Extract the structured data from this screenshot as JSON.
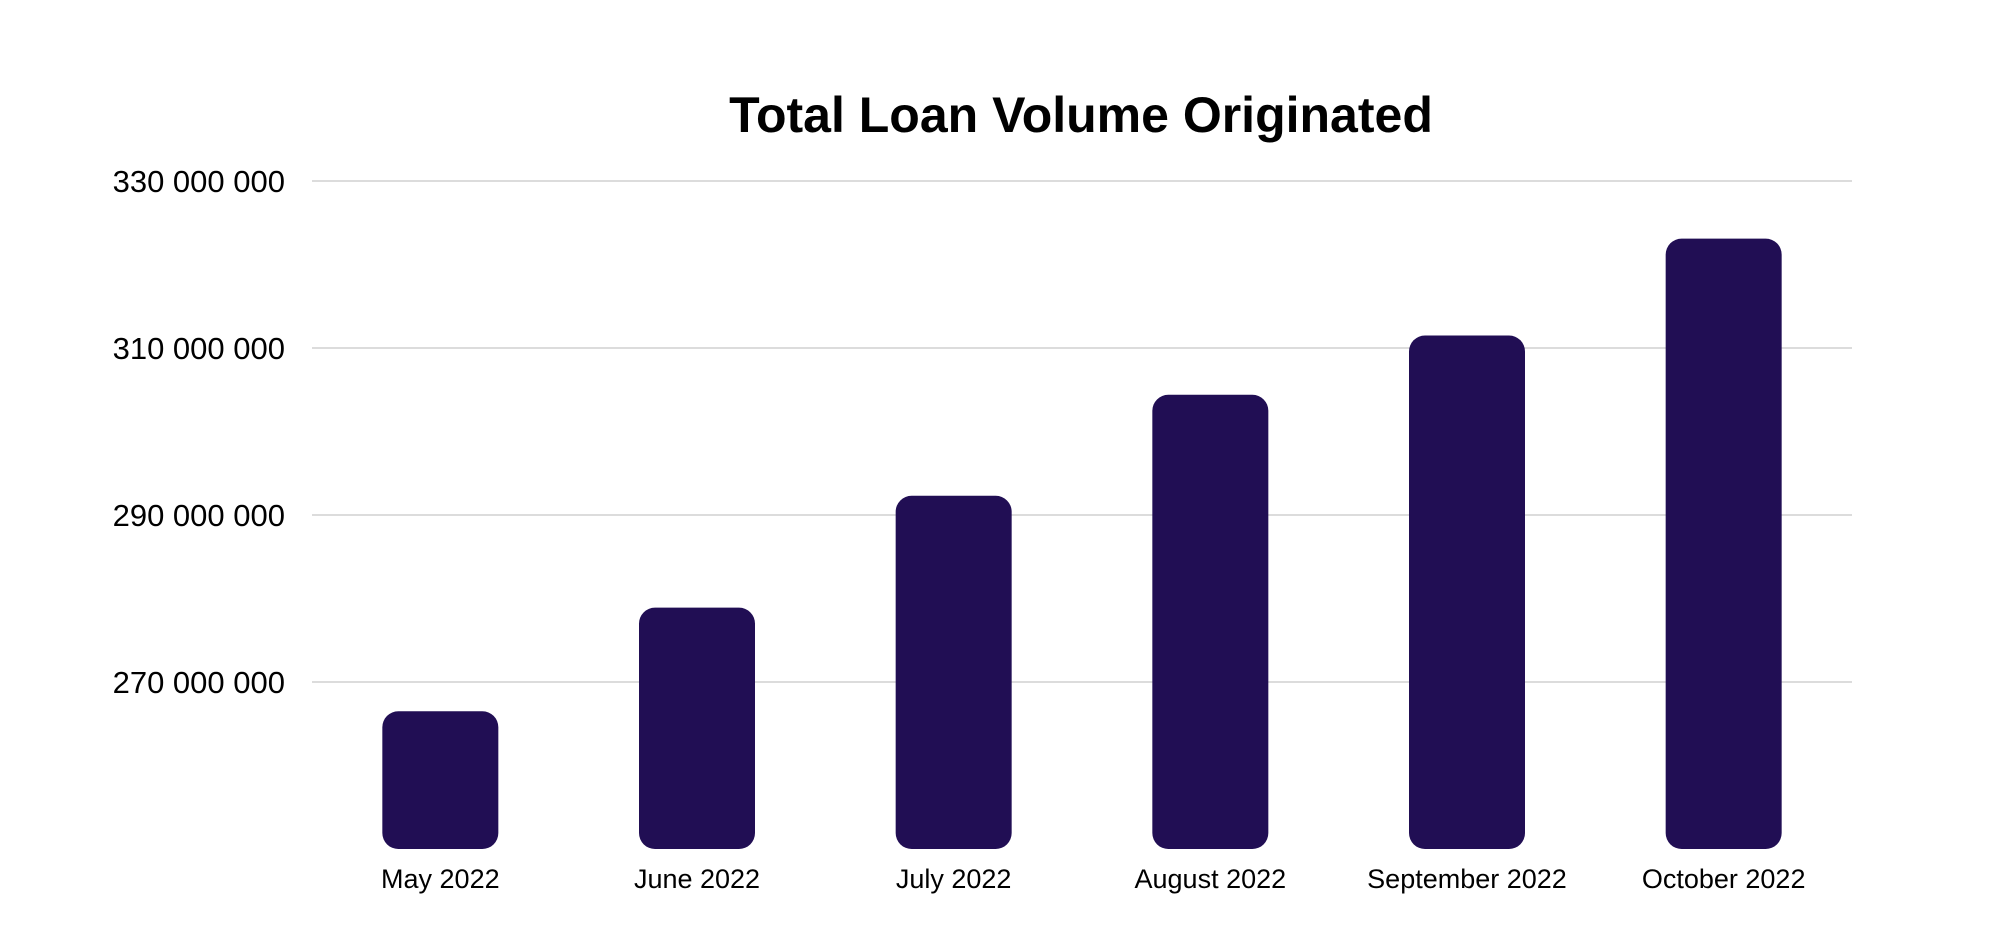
{
  "chart_data": {
    "type": "bar",
    "title": "Total Loan Volume Originated",
    "xlabel": "",
    "ylabel": "",
    "categories": [
      "May 2022",
      "June 2022",
      "July 2022",
      "August 2022",
      "September 2022",
      "October 2022"
    ],
    "values": [
      266500000,
      278900000,
      292300000,
      304400000,
      311500000,
      323100000
    ],
    "yticks": [
      270000000,
      290000000,
      310000000,
      330000000
    ],
    "ytick_labels": [
      "270 000 000",
      "290 000 000",
      "310 000 000",
      "330 000 000"
    ],
    "ylim": [
      250000000,
      330000000
    ],
    "grid": true,
    "legend": "none",
    "bar_color": "#210e54"
  }
}
